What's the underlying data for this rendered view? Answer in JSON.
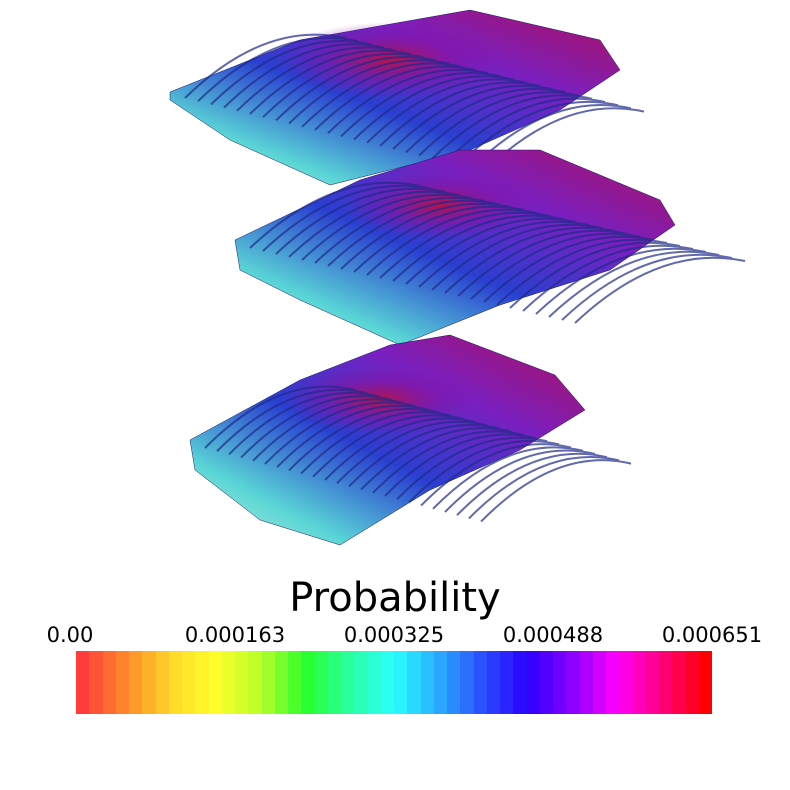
{
  "legend": {
    "title": "Probability",
    "ticks": [
      "0.00",
      "0.000163",
      "0.000325",
      "0.000488",
      "0.000651"
    ],
    "range": [
      0.0,
      0.000651
    ],
    "band_count": 48,
    "colormap": [
      "#ff3b3b",
      "#ff8a2a",
      "#ffd92a",
      "#ffff2a",
      "#b8ff2a",
      "#2aff2a",
      "#2affa0",
      "#2affff",
      "#2aaaff",
      "#2a4dff",
      "#2a00ff",
      "#8a00ff",
      "#ff00ff",
      "#ff0080",
      "#ff0000"
    ]
  },
  "scene": {
    "slab_count": 3,
    "surface_colors": [
      "#aef0e6",
      "#5ad6d6",
      "#2a8fd0",
      "#3a2fd0",
      "#6a1fbf",
      "#a0107a",
      "#c0103f"
    ]
  }
}
